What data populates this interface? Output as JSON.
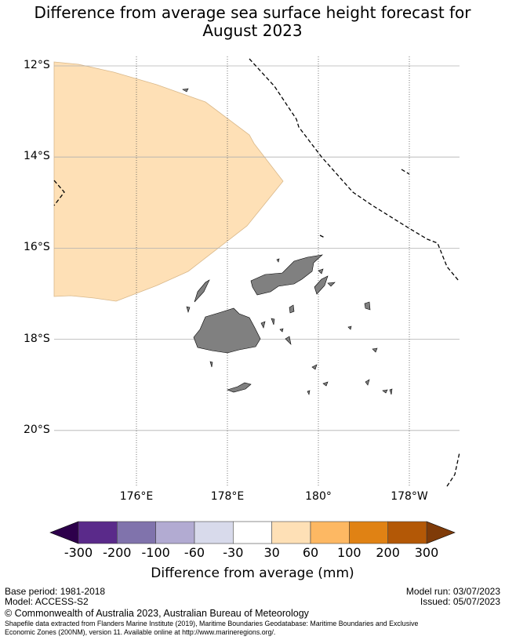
{
  "chart_data": {
    "type": "map",
    "title_line1": "Difference from average sea surface height forecast for",
    "title_line2": "August 2023",
    "lat_ticks": [
      "12°S",
      "14°S",
      "16°S",
      "18°S",
      "20°S"
    ],
    "lat_values": [
      -12,
      -14,
      -16,
      -18,
      -20
    ],
    "lon_ticks": [
      "176°E",
      "178°E",
      "180°",
      "178°W"
    ],
    "lon_values": [
      176,
      178,
      180,
      182
    ],
    "lon_range": [
      174.2,
      183.1
    ],
    "lat_range": [
      -21.2,
      -11.8
    ],
    "shaded_region": {
      "category": "30 to 60",
      "color": "#fee0b6"
    },
    "colorbar": {
      "label": "Difference from average (mm)",
      "ticks": [
        "-300",
        "-200",
        "-100",
        "-60",
        "-30",
        "30",
        "60",
        "100",
        "200",
        "300"
      ],
      "colors": [
        "#5a2a8a",
        "#8073ac",
        "#b2abd2",
        "#d8daeb",
        "#ffffff",
        "#fee0b6",
        "#fdb863",
        "#e08214",
        "#b35806"
      ],
      "under_color": "#2d004b",
      "over_color": "#7f3b08"
    }
  },
  "footer": {
    "base_period": "Base period: 1981-2018",
    "model": "Model: ACCESS-S2",
    "model_run": "Model run: 03/07/2023",
    "issued": "Issued: 05/07/2023",
    "copyright": "© Commonwealth of Australia 2023, Australian Bureau of Meteorology",
    "shapefile_line1": "Shapefile data extracted from Flanders Marine Institute (2019), Maritime Boundaries Geodatabase: Maritime Boundaries and Exclusive",
    "shapefile_line2": "Economic Zones (200NM), version 11. Available online at http://www.marineregions.org/."
  }
}
